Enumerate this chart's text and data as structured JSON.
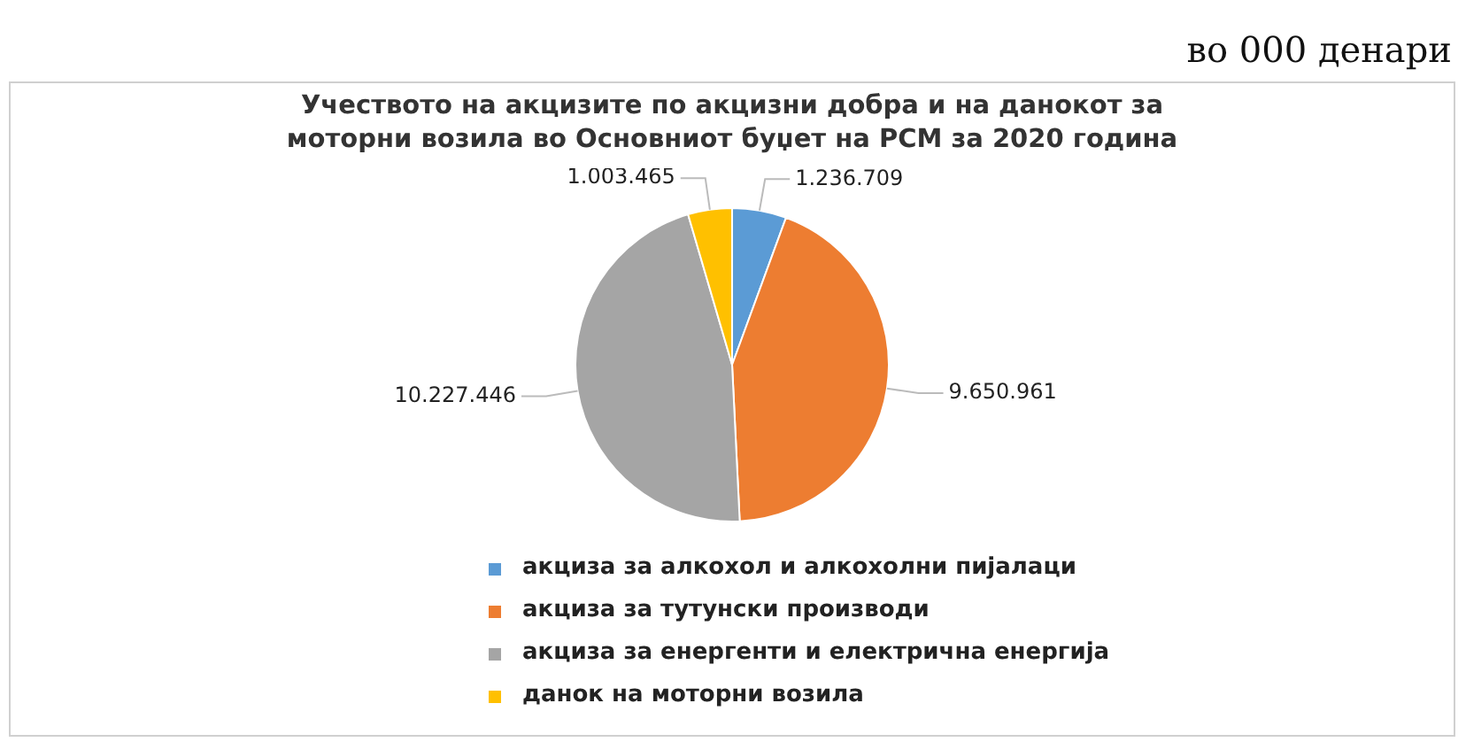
{
  "chart_data": {
    "type": "pie",
    "title": "Учеството на акцизите по акцизни добра и на данокот за моторни возила во Основниот буџет на РСМ за 2020 година",
    "annotations": [
      "во 000 денари"
    ],
    "categories": [
      "акциза за алкохол и алкохолни пијалаци",
      "акциза за тутунски производи",
      "акциза за енергенти и електрична енергија",
      "данок на моторни возила"
    ],
    "values": [
      1236709,
      9650961,
      10227446,
      1003465
    ],
    "value_labels": [
      "1.236.709",
      "9.650.961",
      "10.227.446",
      "1.003.465"
    ],
    "colors": [
      "#5b9bd5",
      "#ed7d31",
      "#a5a5a5",
      "#ffc000"
    ],
    "legend": "bottom"
  }
}
